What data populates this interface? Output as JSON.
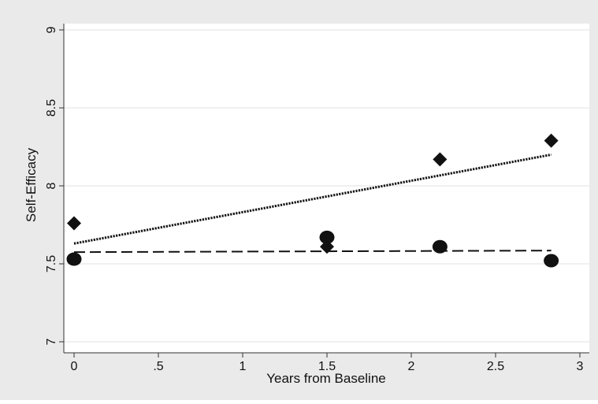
{
  "chart_data": {
    "type": "scatter",
    "title": "",
    "xlabel": "Years from Baseline",
    "ylabel": "Self-Efficacy",
    "xlim": [
      -0.05,
      3.0
    ],
    "ylim": [
      6.98,
      9.1
    ],
    "x_ticks": [
      0,
      0.5,
      1,
      1.5,
      2,
      2.5,
      3
    ],
    "x_tick_labels": [
      "0",
      ".5",
      "1",
      "1.5",
      "2",
      "2.5",
      "3"
    ],
    "y_ticks": [
      7,
      7.5,
      8,
      8.5,
      9
    ],
    "y_tick_labels": [
      "7",
      "7.5",
      "8",
      "8.5",
      "9"
    ],
    "grid": "horizontal",
    "legend": "none",
    "series": [
      {
        "marker": "diamond",
        "color": "#111111",
        "points": [
          {
            "x": 0,
            "y": 7.76
          },
          {
            "x": 1.5,
            "y": 7.61
          },
          {
            "x": 2.17,
            "y": 8.17
          },
          {
            "x": 2.83,
            "y": 8.29
          }
        ]
      },
      {
        "marker": "circle",
        "color": "#111111",
        "points": [
          {
            "x": 0,
            "y": 7.53
          },
          {
            "x": 1.5,
            "y": 7.67
          },
          {
            "x": 2.17,
            "y": 7.61
          },
          {
            "x": 2.83,
            "y": 7.52
          }
        ]
      }
    ],
    "fit_lines": [
      {
        "style": "dotted",
        "color": "#111111",
        "x": [
          0,
          2.83
        ],
        "y": [
          7.63,
          8.2
        ]
      },
      {
        "style": "dashed",
        "color": "#111111",
        "x": [
          0,
          2.83
        ],
        "y": [
          7.575,
          7.585
        ]
      }
    ],
    "colors": {
      "outer_background": "#eaeaea",
      "plot_background": "#ffffff",
      "grid": "#e2e2e2",
      "axis": "#333333"
    }
  }
}
